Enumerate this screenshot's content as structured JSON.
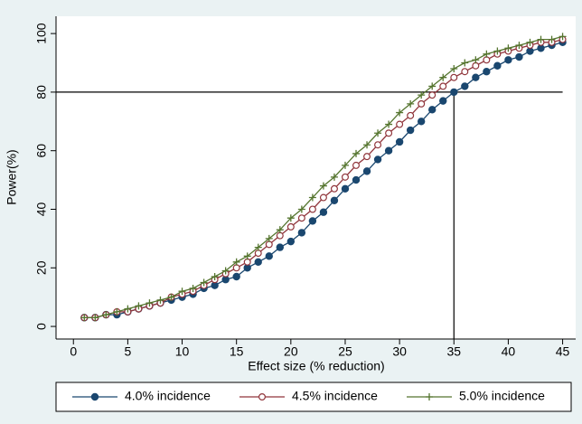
{
  "chart_data": {
    "type": "line",
    "x_label": "Effect size (% reduction)",
    "y_label": "Power(%)",
    "x": [
      1,
      2,
      3,
      4,
      5,
      6,
      7,
      8,
      9,
      10,
      11,
      12,
      13,
      14,
      15,
      16,
      17,
      18,
      19,
      20,
      21,
      22,
      23,
      24,
      25,
      26,
      27,
      28,
      29,
      30,
      31,
      32,
      33,
      34,
      35,
      36,
      37,
      38,
      39,
      40,
      41,
      42,
      43,
      44,
      45
    ],
    "series": [
      {
        "name": "4.0% incidence",
        "color": "#1a476f",
        "marker": "filled-circle",
        "values": [
          3,
          3,
          4,
          4,
          5,
          6,
          7,
          8,
          9,
          10,
          11,
          13,
          14,
          16,
          17,
          20,
          22,
          24,
          27,
          29,
          32,
          36,
          39,
          43,
          47,
          50,
          53,
          57,
          60,
          63,
          67,
          70,
          74,
          77,
          80,
          82,
          85,
          87,
          89,
          91,
          92,
          94,
          95,
          96,
          97
        ]
      },
      {
        "name": "4.5% incidence",
        "color": "#90353b",
        "marker": "hollow-circle",
        "values": [
          3,
          3,
          4,
          5,
          5,
          6,
          7,
          8,
          10,
          11,
          12,
          14,
          16,
          18,
          20,
          22,
          25,
          28,
          31,
          34,
          37,
          40,
          44,
          47,
          51,
          55,
          58,
          62,
          66,
          69,
          72,
          76,
          79,
          82,
          85,
          87,
          89,
          91,
          93,
          94,
          95,
          96,
          97,
          97,
          98
        ]
      },
      {
        "name": "5.0% incidence",
        "color": "#55752f",
        "marker": "plus",
        "values": [
          3,
          3,
          4,
          5,
          6,
          7,
          8,
          9,
          10,
          12,
          13,
          15,
          17,
          19,
          22,
          24,
          27,
          30,
          33,
          37,
          40,
          44,
          48,
          51,
          55,
          59,
          62,
          66,
          69,
          73,
          76,
          79,
          82,
          85,
          88,
          90,
          91,
          93,
          94,
          95,
          96,
          97,
          98,
          98,
          99
        ]
      }
    ],
    "reference_y": 80,
    "reference_x": 35,
    "xlim": [
      -1.6,
      46.2
    ],
    "xticks": [
      0,
      5,
      10,
      15,
      20,
      25,
      30,
      35,
      40,
      45
    ],
    "ylim": [
      -4.3,
      105.9
    ],
    "yticks": [
      0,
      20,
      40,
      60,
      80,
      100
    ]
  }
}
